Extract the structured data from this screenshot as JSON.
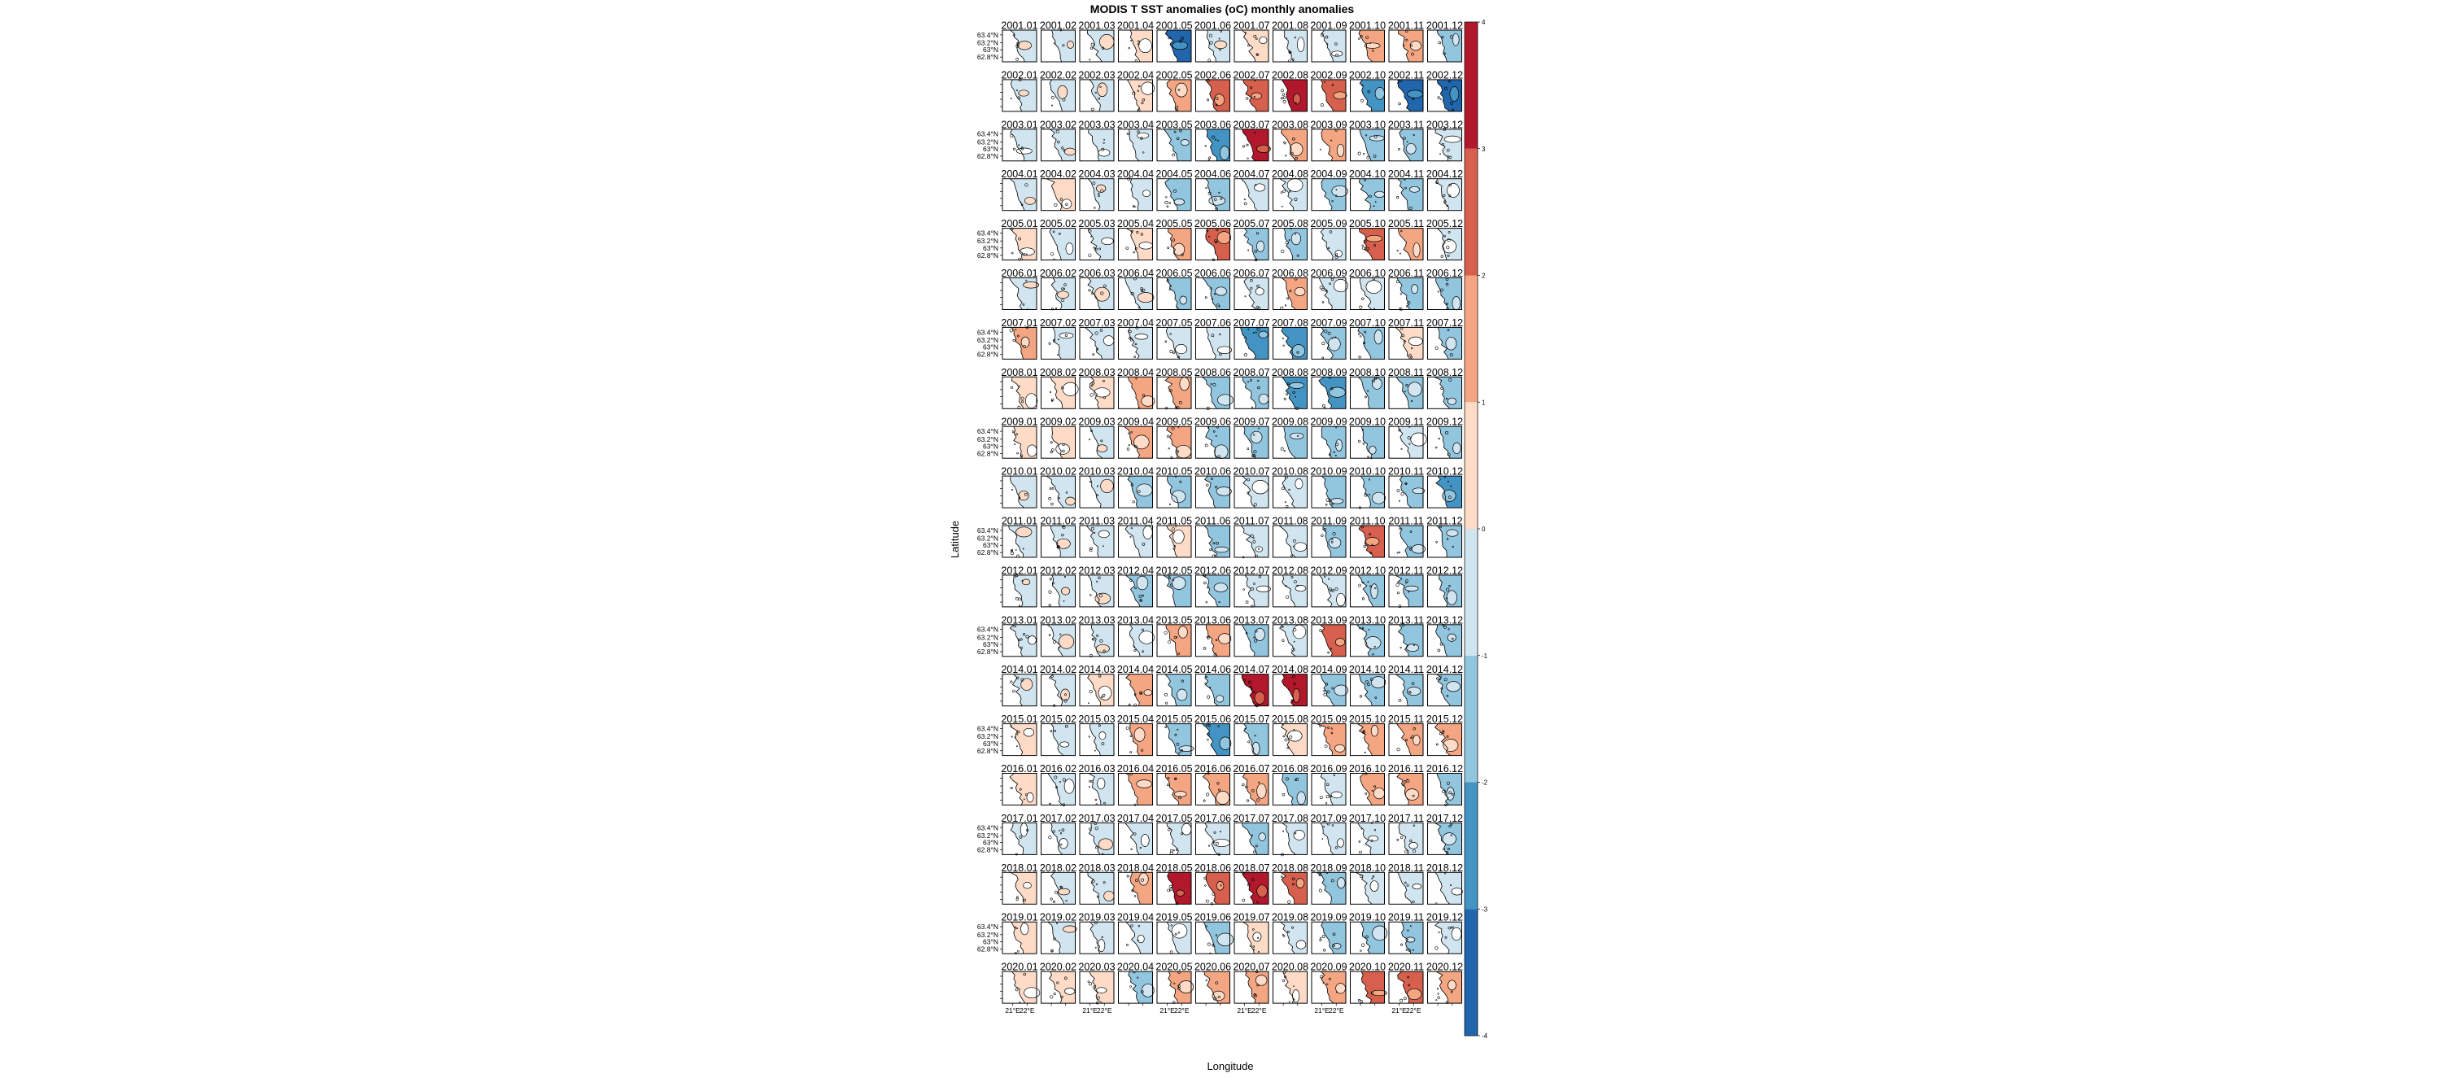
{
  "chart_data": {
    "type": "heatmap",
    "title": "MODIS T SST anomalies (oC) monthly anomalies",
    "xlabel": "Longitude",
    "ylabel": "Latitude",
    "years": [
      "2001",
      "2002",
      "2003",
      "2004",
      "2005",
      "2006",
      "2007",
      "2008",
      "2009",
      "2010",
      "2011",
      "2012",
      "2013",
      "2014",
      "2015",
      "2016",
      "2017",
      "2018",
      "2019",
      "2020"
    ],
    "months": [
      "01",
      "02",
      "03",
      "04",
      "05",
      "06",
      "07",
      "08",
      "09",
      "10",
      "11",
      "12"
    ],
    "y_tick_labels": [
      "63.4°N",
      "63.2°N",
      "63°N",
      "62.8°N"
    ],
    "x_tick_labels": [
      "21°E",
      "22°E"
    ],
    "colorbar": {
      "ticks": [
        -4,
        -3,
        -2,
        -1,
        0,
        1,
        2,
        3,
        4
      ],
      "colors": [
        "#2166ac",
        "#4393c3",
        "#92c5de",
        "#d1e5f0",
        "#fddbc7",
        "#f4a582",
        "#d6604d",
        "#b2182b"
      ]
    },
    "anomaly_grid": [
      [
        0,
        0,
        0,
        1,
        -4,
        0,
        1,
        -1,
        -1,
        2,
        2,
        -2
      ],
      [
        0,
        0,
        0,
        1,
        2,
        3,
        3,
        4,
        3,
        -3,
        -4,
        -4
      ],
      [
        -1,
        0,
        -1,
        -1,
        -2,
        -3,
        4,
        2,
        2,
        -2,
        -2,
        -1
      ],
      [
        0,
        1,
        0,
        -1,
        -2,
        -2,
        -1,
        -1,
        -2,
        -2,
        -2,
        -1
      ],
      [
        1,
        -1,
        -1,
        1,
        2,
        3,
        -2,
        -2,
        -1,
        3,
        2,
        -1
      ],
      [
        0,
        0,
        0,
        0,
        -2,
        -2,
        -1,
        2,
        -1,
        -1,
        -2,
        -2
      ],
      [
        2,
        -1,
        -1,
        -1,
        -1,
        -1,
        -3,
        -3,
        -2,
        -2,
        1,
        -2
      ],
      [
        1,
        1,
        1,
        2,
        2,
        -2,
        -2,
        -3,
        -3,
        -2,
        -2,
        -2
      ],
      [
        1,
        1,
        0,
        2,
        2,
        -2,
        -2,
        -2,
        -2,
        -2,
        -1,
        -2
      ],
      [
        0,
        0,
        0,
        -2,
        -2,
        -2,
        -1,
        -1,
        -2,
        -2,
        -2,
        -3
      ],
      [
        0,
        0,
        -1,
        -1,
        1,
        -2,
        -1,
        -1,
        -2,
        3,
        -2,
        -2
      ],
      [
        0,
        0,
        0,
        -2,
        -2,
        -2,
        -1,
        -1,
        -1,
        -2,
        -2,
        -2
      ],
      [
        -1,
        0,
        0,
        -1,
        2,
        2,
        -2,
        -1,
        3,
        -2,
        -2,
        -2
      ],
      [
        0,
        0,
        1,
        2,
        -2,
        -2,
        4,
        4,
        -2,
        -2,
        -2,
        -2
      ],
      [
        1,
        -1,
        -1,
        2,
        -2,
        -3,
        -2,
        1,
        2,
        2,
        2,
        2
      ],
      [
        1,
        -1,
        -1,
        2,
        2,
        2,
        2,
        -2,
        -1,
        2,
        2,
        -2
      ],
      [
        -1,
        -1,
        0,
        -1,
        -1,
        -1,
        -2,
        -1,
        -1,
        -1,
        -1,
        -2
      ],
      [
        1,
        0,
        0,
        2,
        4,
        3,
        4,
        3,
        -2,
        -1,
        -1,
        -1
      ],
      [
        1,
        0,
        -1,
        -1,
        -1,
        -2,
        1,
        -1,
        -2,
        -2,
        -2,
        -1
      ],
      [
        1,
        1,
        1,
        -2,
        2,
        2,
        2,
        1,
        2,
        3,
        3,
        2
      ]
    ]
  }
}
